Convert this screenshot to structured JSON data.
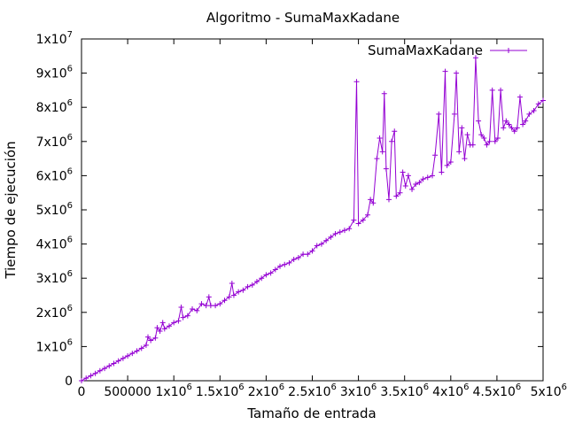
{
  "chart_data": {
    "type": "line",
    "title": "Algoritmo - SumaMaxKadane",
    "xlabel": "Tamaño de entrada",
    "ylabel": "Tiempo de ejecución",
    "xlim": [
      0,
      5000000
    ],
    "ylim": [
      0,
      10000000
    ],
    "x_ticks": [
      {
        "value": 0,
        "label": "0",
        "exp": ""
      },
      {
        "value": 500000,
        "label": "500000",
        "exp": ""
      },
      {
        "value": 1000000,
        "label": "1x10",
        "exp": "6"
      },
      {
        "value": 1500000,
        "label": "1.5x10",
        "exp": "6"
      },
      {
        "value": 2000000,
        "label": "2x10",
        "exp": "6"
      },
      {
        "value": 2500000,
        "label": "2.5x10",
        "exp": "6"
      },
      {
        "value": 3000000,
        "label": "3x10",
        "exp": "6"
      },
      {
        "value": 3500000,
        "label": "3.5x10",
        "exp": "6"
      },
      {
        "value": 4000000,
        "label": "4x10",
        "exp": "6"
      },
      {
        "value": 4500000,
        "label": "4.5x10",
        "exp": "6"
      },
      {
        "value": 5000000,
        "label": "5x10",
        "exp": "6"
      }
    ],
    "y_ticks": [
      {
        "value": 0,
        "label": "0",
        "exp": ""
      },
      {
        "value": 1000000,
        "label": "1x10",
        "exp": "6"
      },
      {
        "value": 2000000,
        "label": "2x10",
        "exp": "6"
      },
      {
        "value": 3000000,
        "label": "3x10",
        "exp": "6"
      },
      {
        "value": 4000000,
        "label": "4x10",
        "exp": "6"
      },
      {
        "value": 5000000,
        "label": "5x10",
        "exp": "6"
      },
      {
        "value": 6000000,
        "label": "6x10",
        "exp": "6"
      },
      {
        "value": 7000000,
        "label": "7x10",
        "exp": "6"
      },
      {
        "value": 8000000,
        "label": "8x10",
        "exp": "6"
      },
      {
        "value": 9000000,
        "label": "9x10",
        "exp": "6"
      },
      {
        "value": 10000000,
        "label": "1x10",
        "exp": "7"
      }
    ],
    "grid": false,
    "legend_position": "top-right",
    "series": [
      {
        "name": "SumaMaxKadane",
        "color": "#9400d3",
        "marker": "plus",
        "points": [
          [
            0,
            0
          ],
          [
            50000,
            75000
          ],
          [
            100000,
            145000
          ],
          [
            150000,
            215000
          ],
          [
            200000,
            290000
          ],
          [
            250000,
            360000
          ],
          [
            300000,
            435000
          ],
          [
            350000,
            505000
          ],
          [
            400000,
            580000
          ],
          [
            450000,
            655000
          ],
          [
            500000,
            725000
          ],
          [
            550000,
            800000
          ],
          [
            600000,
            870000
          ],
          [
            650000,
            950000
          ],
          [
            700000,
            1040000
          ],
          [
            720000,
            1280000
          ],
          [
            750000,
            1180000
          ],
          [
            800000,
            1250000
          ],
          [
            820000,
            1550000
          ],
          [
            850000,
            1450000
          ],
          [
            880000,
            1700000
          ],
          [
            900000,
            1520000
          ],
          [
            950000,
            1600000
          ],
          [
            1000000,
            1700000
          ],
          [
            1050000,
            1750000
          ],
          [
            1080000,
            2150000
          ],
          [
            1100000,
            1850000
          ],
          [
            1150000,
            1900000
          ],
          [
            1200000,
            2100000
          ],
          [
            1250000,
            2050000
          ],
          [
            1300000,
            2250000
          ],
          [
            1350000,
            2200000
          ],
          [
            1380000,
            2450000
          ],
          [
            1400000,
            2200000
          ],
          [
            1450000,
            2200000
          ],
          [
            1500000,
            2250000
          ],
          [
            1550000,
            2350000
          ],
          [
            1600000,
            2450000
          ],
          [
            1630000,
            2850000
          ],
          [
            1650000,
            2500000
          ],
          [
            1700000,
            2600000
          ],
          [
            1750000,
            2650000
          ],
          [
            1800000,
            2750000
          ],
          [
            1850000,
            2800000
          ],
          [
            1900000,
            2900000
          ],
          [
            1950000,
            3000000
          ],
          [
            2000000,
            3100000
          ],
          [
            2050000,
            3150000
          ],
          [
            2100000,
            3250000
          ],
          [
            2150000,
            3350000
          ],
          [
            2200000,
            3400000
          ],
          [
            2250000,
            3450000
          ],
          [
            2300000,
            3550000
          ],
          [
            2350000,
            3600000
          ],
          [
            2400000,
            3700000
          ],
          [
            2450000,
            3700000
          ],
          [
            2500000,
            3800000
          ],
          [
            2550000,
            3950000
          ],
          [
            2600000,
            4000000
          ],
          [
            2650000,
            4100000
          ],
          [
            2700000,
            4200000
          ],
          [
            2750000,
            4300000
          ],
          [
            2800000,
            4350000
          ],
          [
            2850000,
            4400000
          ],
          [
            2900000,
            4450000
          ],
          [
            2950000,
            4700000
          ],
          [
            2980000,
            8750000
          ],
          [
            3000000,
            4600000
          ],
          [
            3050000,
            4700000
          ],
          [
            3100000,
            4850000
          ],
          [
            3130000,
            5300000
          ],
          [
            3160000,
            5200000
          ],
          [
            3200000,
            6500000
          ],
          [
            3230000,
            7100000
          ],
          [
            3260000,
            6700000
          ],
          [
            3280000,
            8400000
          ],
          [
            3300000,
            6200000
          ],
          [
            3330000,
            5300000
          ],
          [
            3360000,
            7000000
          ],
          [
            3390000,
            7300000
          ],
          [
            3410000,
            5400000
          ],
          [
            3450000,
            5500000
          ],
          [
            3480000,
            6100000
          ],
          [
            3510000,
            5700000
          ],
          [
            3540000,
            6000000
          ],
          [
            3580000,
            5600000
          ],
          [
            3620000,
            5750000
          ],
          [
            3660000,
            5800000
          ],
          [
            3700000,
            5900000
          ],
          [
            3750000,
            5950000
          ],
          [
            3800000,
            6000000
          ],
          [
            3830000,
            6600000
          ],
          [
            3870000,
            7800000
          ],
          [
            3900000,
            6100000
          ],
          [
            3940000,
            9050000
          ],
          [
            3960000,
            6300000
          ],
          [
            4000000,
            6400000
          ],
          [
            4040000,
            7800000
          ],
          [
            4060000,
            9000000
          ],
          [
            4090000,
            6700000
          ],
          [
            4120000,
            7400000
          ],
          [
            4150000,
            6500000
          ],
          [
            4180000,
            7200000
          ],
          [
            4210000,
            6900000
          ],
          [
            4240000,
            6900000
          ],
          [
            4270000,
            9450000
          ],
          [
            4300000,
            7600000
          ],
          [
            4330000,
            7200000
          ],
          [
            4360000,
            7100000
          ],
          [
            4390000,
            6900000
          ],
          [
            4420000,
            7000000
          ],
          [
            4450000,
            8500000
          ],
          [
            4480000,
            7000000
          ],
          [
            4510000,
            7100000
          ],
          [
            4540000,
            8500000
          ],
          [
            4570000,
            7400000
          ],
          [
            4600000,
            7600000
          ],
          [
            4630000,
            7500000
          ],
          [
            4660000,
            7400000
          ],
          [
            4690000,
            7300000
          ],
          [
            4720000,
            7400000
          ],
          [
            4750000,
            8300000
          ],
          [
            4780000,
            7500000
          ],
          [
            4810000,
            7600000
          ],
          [
            4850000,
            7800000
          ],
          [
            4900000,
            7900000
          ],
          [
            4950000,
            8100000
          ],
          [
            5000000,
            8200000
          ]
        ]
      }
    ]
  }
}
